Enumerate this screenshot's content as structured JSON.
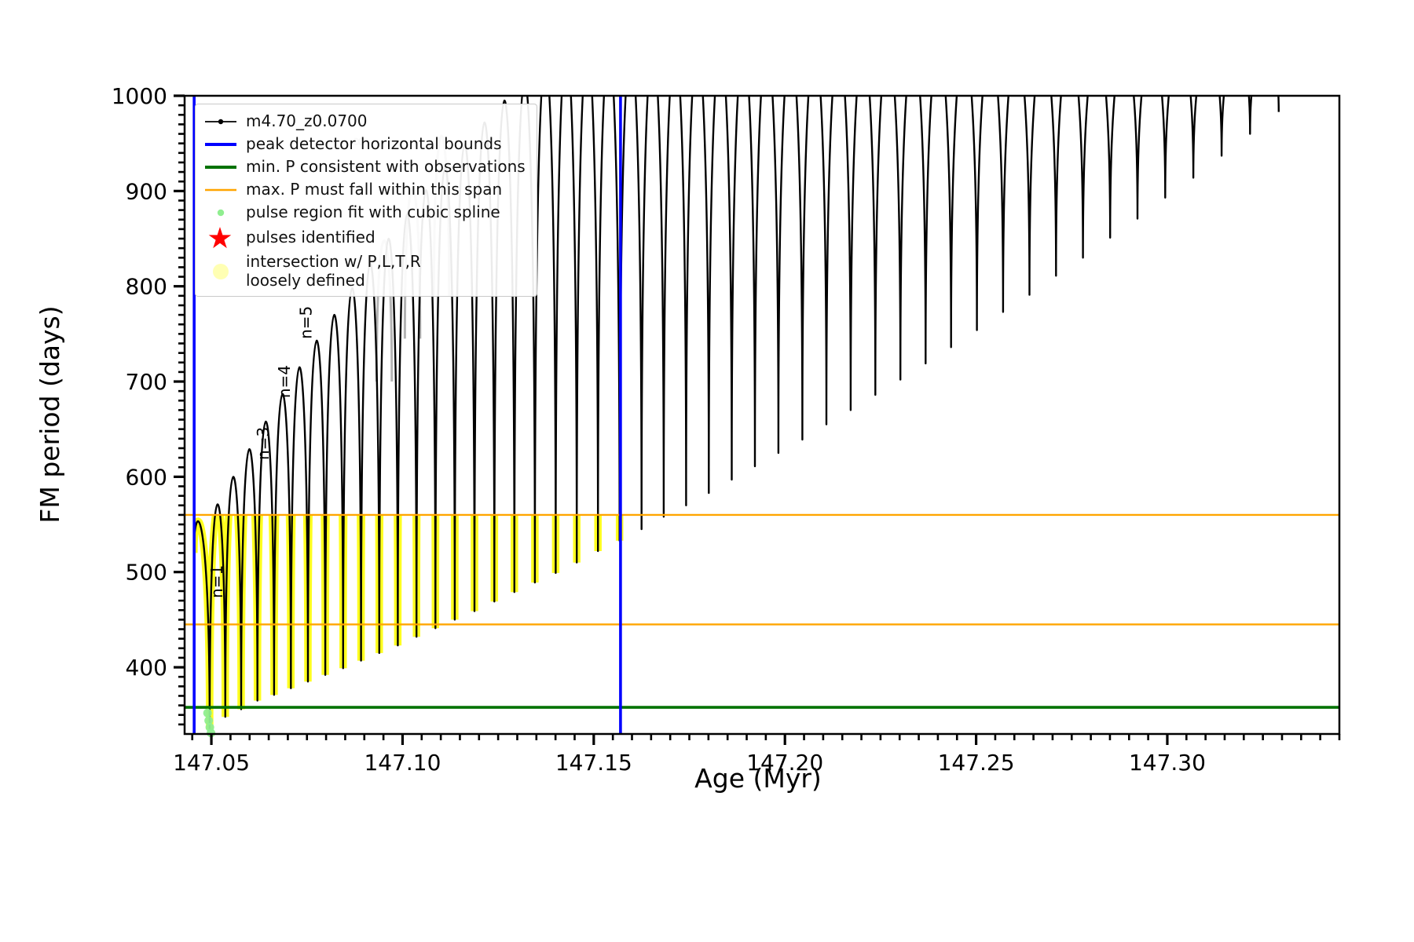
{
  "chart_data": {
    "type": "line",
    "title": "",
    "xlabel": "Age (Myr)",
    "ylabel": "FM period (days)",
    "xlim": [
      147.043,
      147.345
    ],
    "ylim": [
      330,
      1000
    ],
    "x_major_ticks": [
      147.05,
      147.1,
      147.15,
      147.2,
      147.25,
      147.3
    ],
    "x_tick_labels": [
      "147.05",
      "147.10",
      "147.15",
      "147.20",
      "147.25",
      "147.30"
    ],
    "x_minor_step": 0.005,
    "y_major_ticks": [
      400,
      500,
      600,
      700,
      800,
      900,
      1000
    ],
    "y_tick_labels": [
      "400",
      "500",
      "600",
      "700",
      "800",
      "900",
      "1000"
    ],
    "y_minor_step": 10,
    "grid": false,
    "legend_position": "upper-left",
    "series_label": "m4.70_z0.0700",
    "colors": {
      "series": "#000000",
      "vline_blue": "#0000ff",
      "hline_green": "#007200",
      "hline_orange": "#ffa500",
      "pulse_highlight_yellow": "#ffff00",
      "spline_dot_green": "#90ee90",
      "pulse_star_red": "#ff0000",
      "faint_track_gray": "#b3b3b3"
    },
    "start_point": {
      "x": 147.04545,
      "y": 520
    },
    "pulses_x_peak_min": [
      [
        147.0475,
        542,
        335
      ],
      [
        147.0516,
        571,
        348
      ],
      [
        147.0557,
        600,
        356
      ],
      [
        147.0599,
        629,
        365
      ],
      [
        147.0642,
        658,
        371
      ],
      [
        147.0686,
        687,
        378
      ],
      [
        147.073,
        715,
        385
      ],
      [
        147.0775,
        743,
        392
      ],
      [
        147.0821,
        770,
        399
      ],
      [
        147.0868,
        798,
        407
      ],
      [
        147.0915,
        824,
        415
      ],
      [
        147.0963,
        850,
        423
      ],
      [
        147.1012,
        876,
        432
      ],
      [
        147.1061,
        901,
        441
      ],
      [
        147.1111,
        925,
        450
      ],
      [
        147.1162,
        949,
        459
      ],
      [
        147.1214,
        972,
        469
      ],
      [
        147.1266,
        995,
        479
      ],
      [
        147.1319,
        1016,
        489
      ],
      [
        147.1373,
        1038,
        499
      ],
      [
        147.1428,
        1050,
        510
      ],
      [
        147.1483,
        1050,
        522
      ],
      [
        147.1539,
        1050,
        533
      ],
      [
        147.1596,
        1050,
        545
      ],
      [
        147.1654,
        1050,
        558
      ],
      [
        147.1712,
        1050,
        570
      ],
      [
        147.1771,
        1050,
        583
      ],
      [
        147.1831,
        1050,
        597
      ],
      [
        147.1891,
        1050,
        611
      ],
      [
        147.1952,
        1050,
        625
      ],
      [
        147.2014,
        1050,
        639
      ],
      [
        147.2077,
        1050,
        655
      ],
      [
        147.214,
        1050,
        670
      ],
      [
        147.2204,
        1050,
        686
      ],
      [
        147.2269,
        1050,
        702
      ],
      [
        147.2335,
        1050,
        719
      ],
      [
        147.2401,
        1050,
        736
      ],
      [
        147.2468,
        1050,
        754
      ],
      [
        147.2536,
        1050,
        773
      ],
      [
        147.2605,
        1050,
        791
      ],
      [
        147.2674,
        1050,
        811
      ],
      [
        147.2744,
        1050,
        830
      ],
      [
        147.2815,
        1050,
        851
      ],
      [
        147.2886,
        1050,
        871
      ],
      [
        147.2958,
        1050,
        893
      ],
      [
        147.3031,
        1050,
        914
      ],
      [
        147.3105,
        1050,
        937
      ],
      [
        147.3179,
        1050,
        960
      ],
      [
        147.3254,
        1050,
        983
      ]
    ],
    "blue_vlines_x": [
      147.0455,
      147.157
    ],
    "orange_hlines_y": [
      560,
      445
    ],
    "green_hline_y": 358,
    "yellow_highlight": {
      "x_range": [
        147.0455,
        147.158
      ],
      "y_below": 560
    },
    "green_dots": [
      [
        147.049,
        352
      ],
      [
        147.0493,
        344
      ],
      [
        147.0496,
        337
      ],
      [
        147.0499,
        331
      ]
    ],
    "gray_arcs_x_peak_base": [
      [
        147.0952,
        848,
        700
      ],
      [
        147.1026,
        903,
        745
      ],
      [
        147.1102,
        958,
        790
      ]
    ],
    "annotations": [
      {
        "text": "n=1",
        "x": 147.0529,
        "y": 490,
        "color": "#000000"
      },
      {
        "text": "n=3",
        "x": 147.065,
        "y": 635,
        "color": "#000000"
      },
      {
        "text": "n=4",
        "x": 147.0705,
        "y": 700,
        "color": "#000000"
      },
      {
        "text": "n=5",
        "x": 147.0762,
        "y": 762,
        "color": "#000000"
      },
      {
        "text": "8",
        "x": 147.0902,
        "y": 952,
        "color": "#b0b0b0"
      }
    ],
    "legend": {
      "items": [
        {
          "label": "m4.70_z0.0700",
          "marker": "line-dot"
        },
        {
          "label": "peak detector horizontal bounds",
          "marker": "blue-line"
        },
        {
          "label": "min. P consistent with observations",
          "marker": "green-line"
        },
        {
          "label": "max. P must fall within this span",
          "marker": "orange-line"
        },
        {
          "label": "pulse region fit with cubic spline",
          "marker": "green-dot"
        },
        {
          "label": "pulses identified",
          "marker": "red-star"
        },
        {
          "label": "intersection w/ P,L,T,R\nloosely defined",
          "marker": "yellow-dot"
        }
      ]
    }
  }
}
